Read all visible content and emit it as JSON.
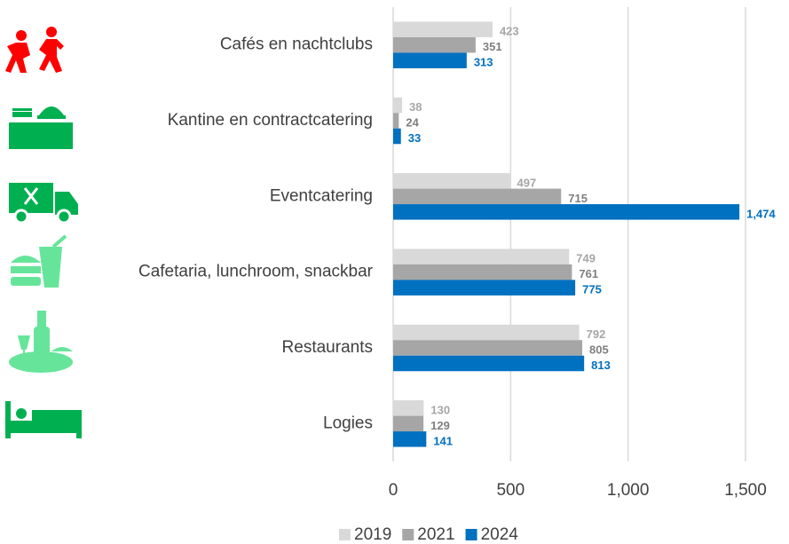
{
  "chart_data": {
    "type": "bar",
    "categories": [
      "Cafés en nachtclubs",
      "Kantine en contractcatering",
      "Eventcatering",
      "Cafetaria, lunchroom, snackbar",
      "Restaurants",
      "Logies"
    ],
    "series": [
      {
        "name": "2019",
        "color": "#d9d9d9",
        "label_color": "#a6a6a6",
        "values": [
          423,
          38,
          497,
          749,
          792,
          130
        ]
      },
      {
        "name": "2021",
        "color": "#a6a6a6",
        "label_color": "#7f7f7f",
        "values": [
          351,
          24,
          715,
          761,
          805,
          129
        ]
      },
      {
        "name": "2024",
        "color": "#0070c0",
        "label_color": "#0070c0",
        "values": [
          313,
          33,
          1474,
          775,
          813,
          141
        ],
        "value_labels": [
          "313",
          "33",
          "1,474",
          "775",
          "813",
          "141"
        ]
      }
    ],
    "xlim": [
      0,
      1500
    ],
    "xticks": [
      0,
      500,
      {
        "value": 1000,
        "label": "1,000"
      },
      {
        "value": 1500,
        "label": "1,500"
      }
    ],
    "grid": true,
    "legend": "bottom"
  }
}
